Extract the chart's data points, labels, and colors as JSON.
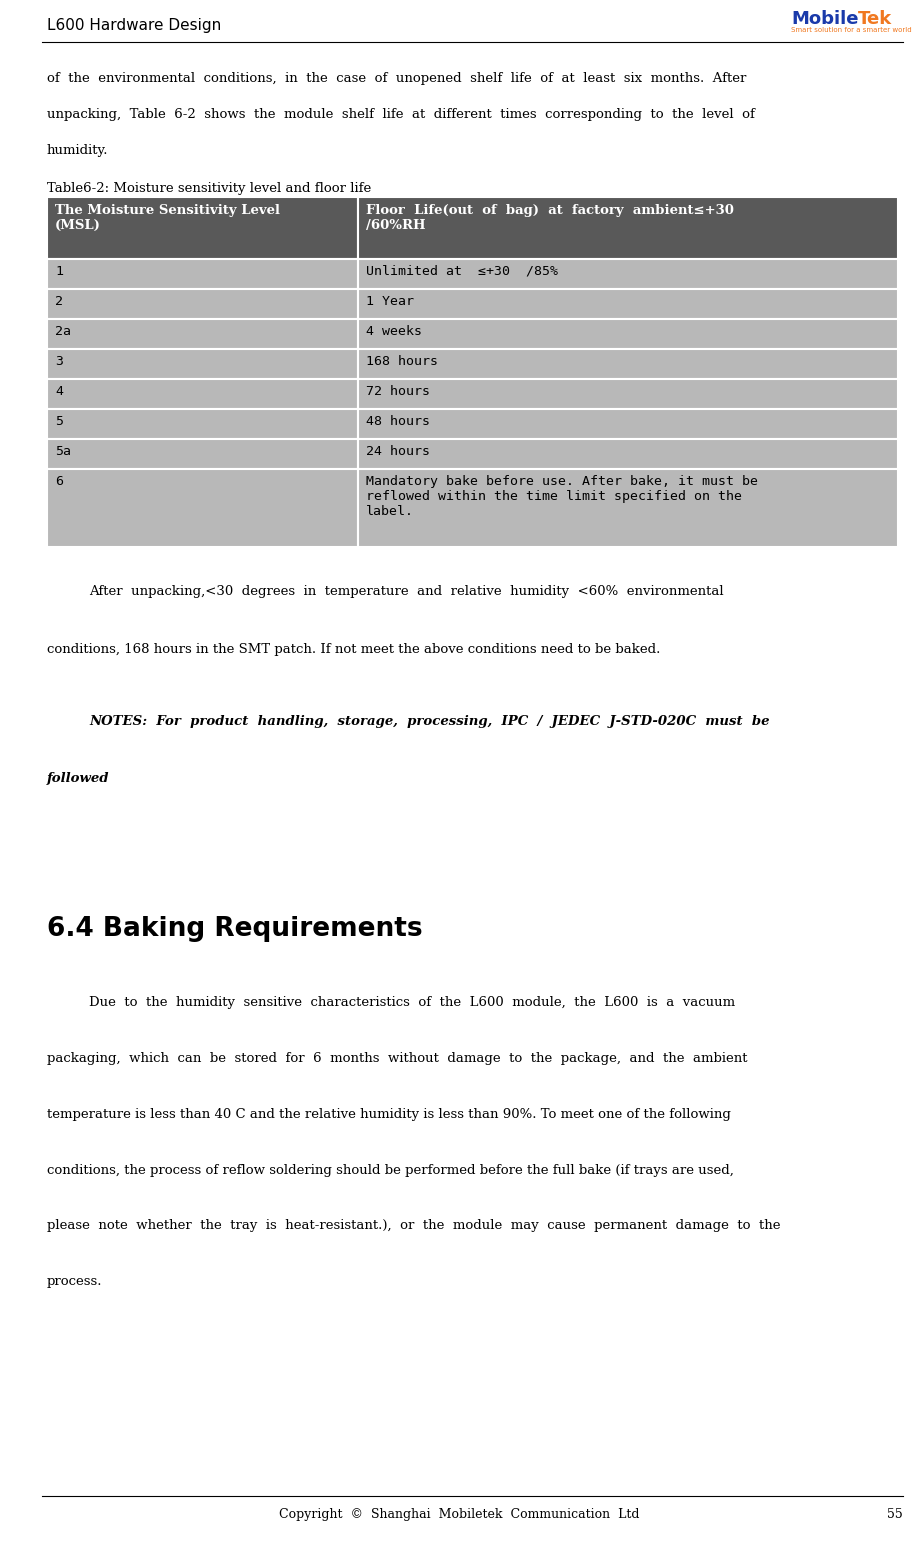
{
  "page_width": 9.18,
  "page_height": 15.41,
  "header_title": "L600 Hardware Design",
  "footer_text": "Copyright  ©  Shanghai  Mobiletek  Communication  Ltd",
  "footer_page": "55",
  "intro_text_1": "of  the  environmental  conditions,  in  the  case  of  unopened  shelf  life  of  at  least  six  months.  After",
  "intro_text_2": "unpacking,  Table  6-2  shows  the  module  shelf  life  at  different  times  corresponding  to  the  level  of",
  "intro_text_3": "humidity.",
  "table_caption": "Table6-2: Moisture sensitivity level and floor life",
  "table_header_col1": "The Moisture Sensitivity Level\n(MSL)",
  "table_header_col2": "Floor  Life(out  of  bag)  at  factory  ambient≤+30\n/60%RH",
  "table_header_bg": "#595959",
  "table_row_bg": "#b8b8b8",
  "table_rows": [
    [
      "1",
      "Unlimited at  ≤+30  /85%"
    ],
    [
      "2",
      "1 Year"
    ],
    [
      "2a",
      "4 weeks"
    ],
    [
      "3",
      "168 hours"
    ],
    [
      "4",
      "72 hours"
    ],
    [
      "5",
      "48 hours"
    ],
    [
      "5a",
      "24 hours"
    ],
    [
      "6",
      "Mandatory bake before use. After bake, it must be\nreflowed within the time limit specified on the\nlabel."
    ]
  ],
  "after_table_text1": "After  unpacking,<30  degrees  in  temperature  and  relative  humidity  <60%  environmental",
  "after_table_text2": "conditions, 168 hours in the SMT patch. If not meet the above conditions need to be baked.",
  "notes_text1": "NOTES:  For  product  handling,  storage,  processing,  IPC  /  JEDEC  J-STD-020C  must  be",
  "notes_text2": "followed",
  "section_title": "6.4 Baking Requirements",
  "baking_text1": "Due  to  the  humidity  sensitive  characteristics  of  the  L600  module,  the  L600  is  a  vacuum",
  "baking_text2": "packaging,  which  can  be  stored  for  6  months  without  damage  to  the  package,  and  the  ambient",
  "baking_text3": "temperature is less than 40 C and the relative humidity is less than 90%. To meet one of the following",
  "baking_text4": "conditions, the process of reflow soldering should be performed before the full bake (if trays are used,",
  "baking_text5": "please  note  whether  the  tray  is  heat-resistant.),  or  the  module  may  cause  permanent  damage  to  the",
  "baking_text6": "process."
}
